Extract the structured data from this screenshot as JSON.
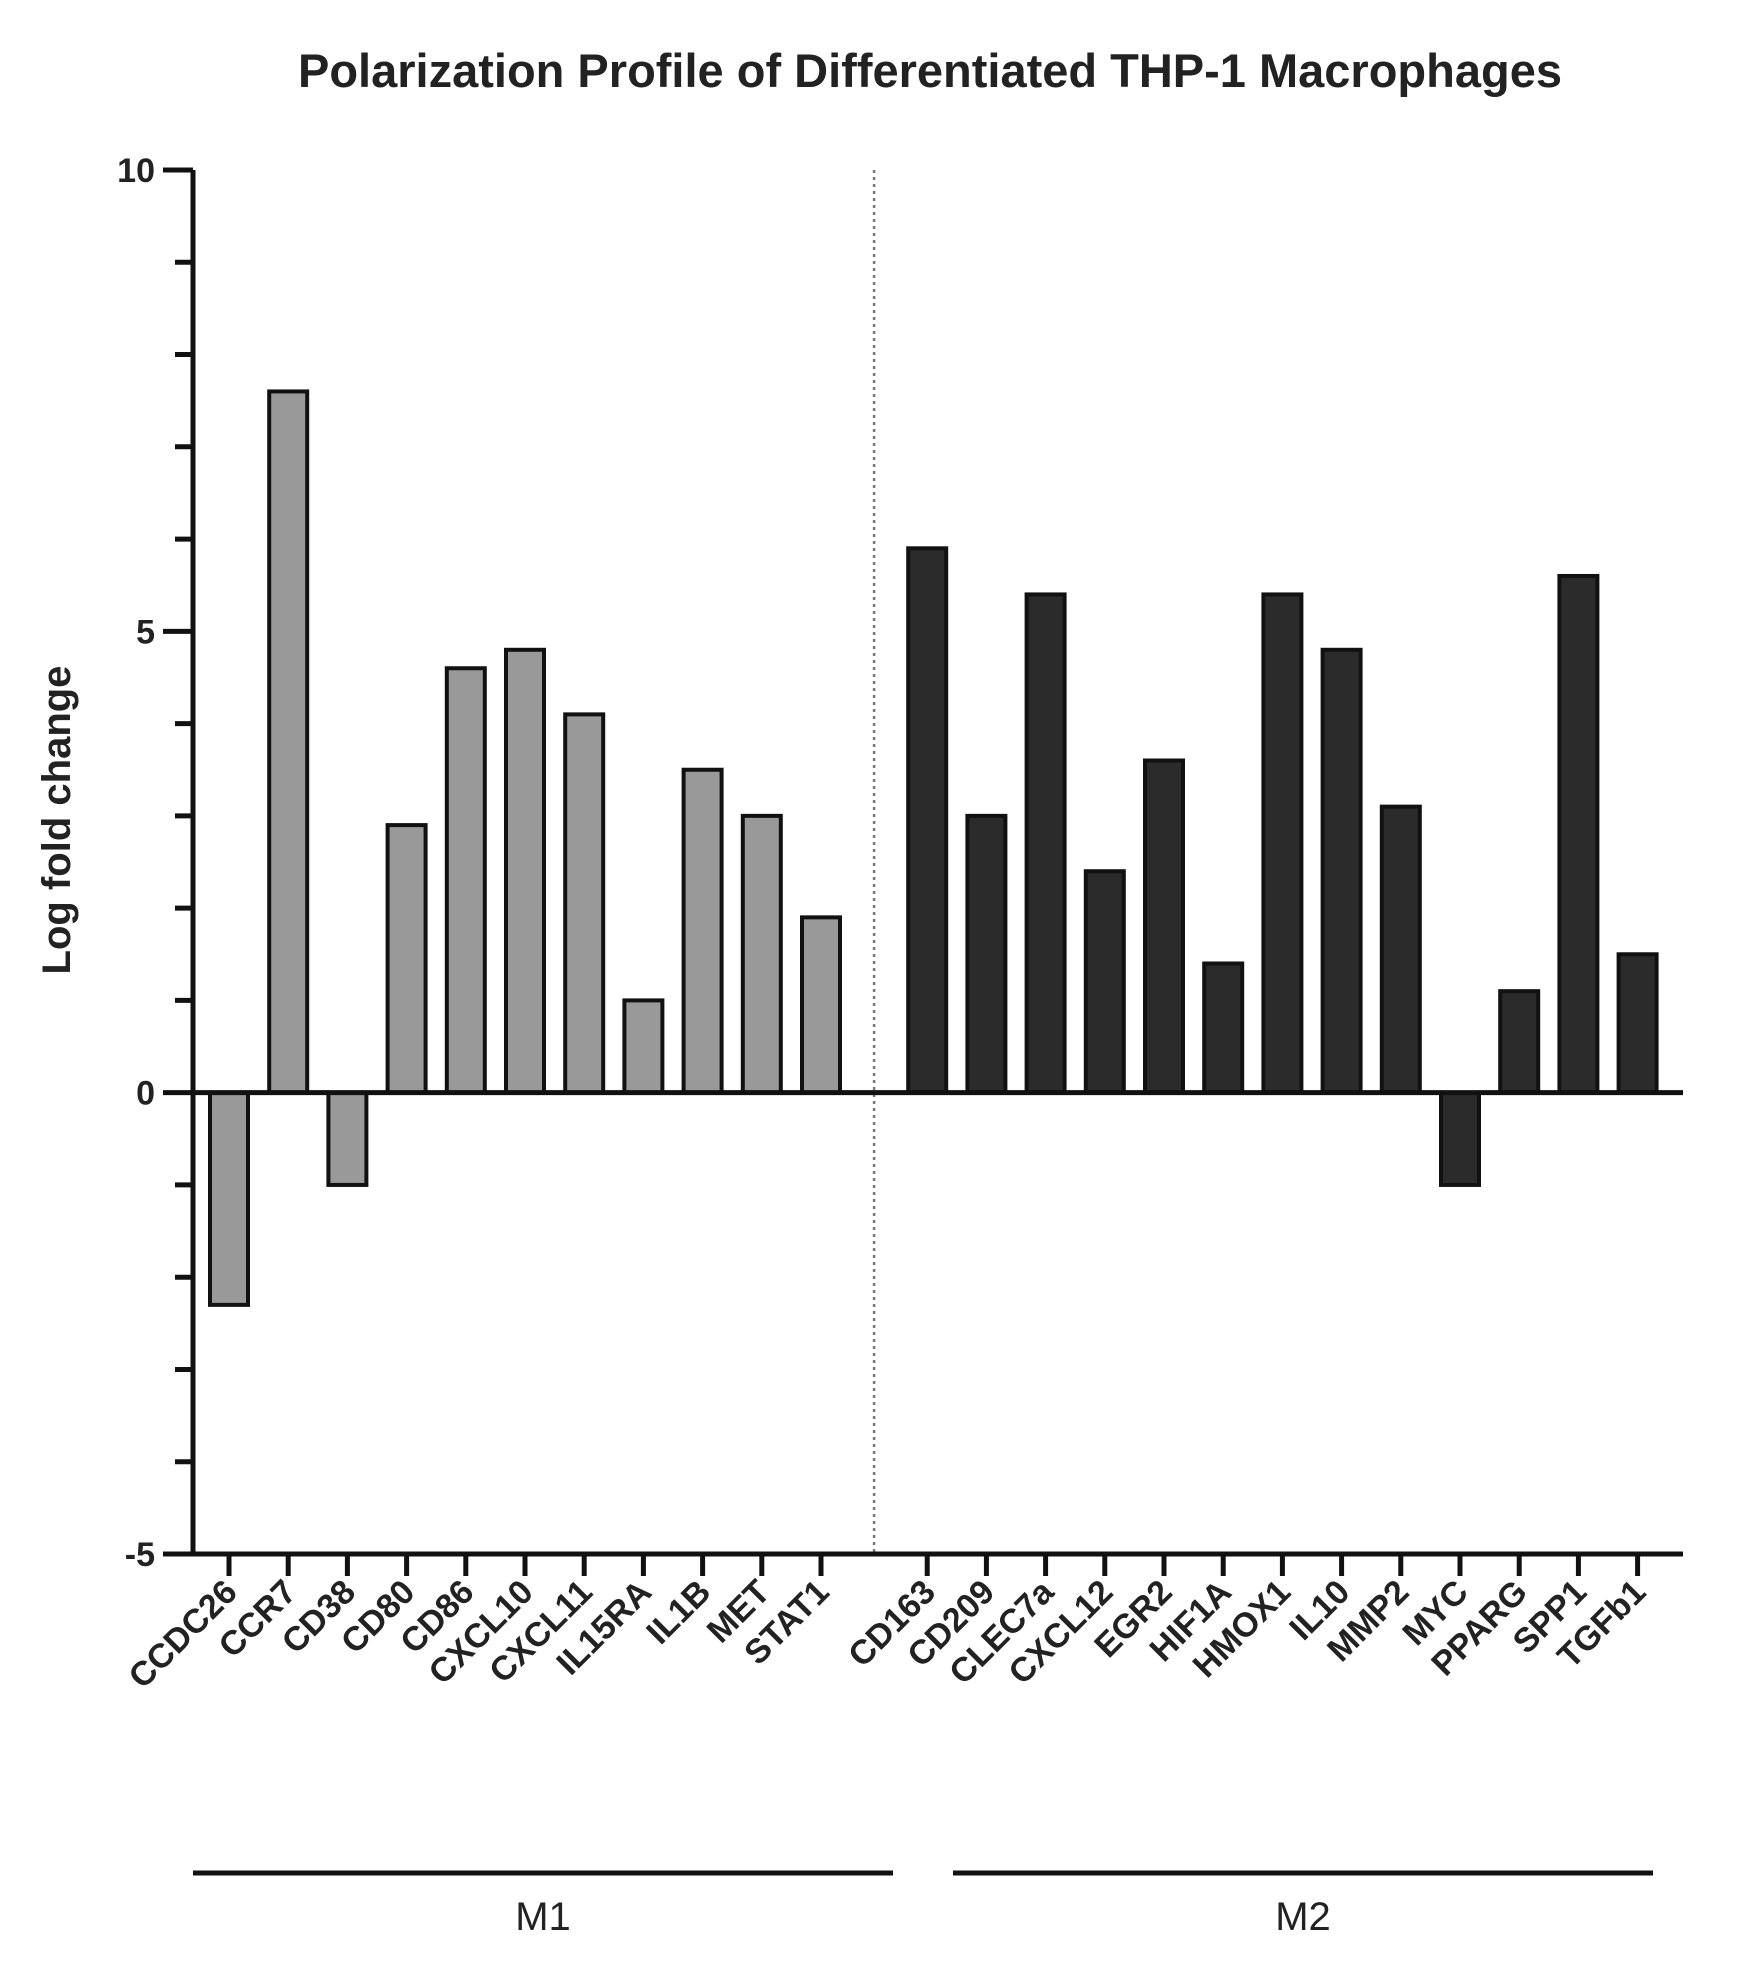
{
  "chart_data": {
    "type": "bar",
    "title": "Polarization Profile of Differentiated THP-1 Macrophages",
    "ylabel": "Log fold change",
    "xlabel": "",
    "ylim": [
      -5,
      10
    ],
    "yticks_labeled": [
      -5,
      0,
      5,
      10
    ],
    "yticks_minor_step": 1,
    "grid": false,
    "legend": "none",
    "categories": [
      "CCDC26",
      "CCR7",
      "CD38",
      "CD80",
      "CD86",
      "CXCL10",
      "CXCL11",
      "IL15RA",
      "IL1B",
      "MET",
      "STAT1",
      "CD163",
      "CD209",
      "CLEC7a",
      "CXCL12",
      "EGR2",
      "HIF1A",
      "HMOX1",
      "IL10",
      "MMP2",
      "MYC",
      "PPARG",
      "SPP1",
      "TGFb1"
    ],
    "series": [
      {
        "values": [
          -2.3,
          7.6,
          -1.0,
          2.9,
          4.6,
          4.8,
          4.1,
          1.0,
          3.5,
          3.0,
          1.9,
          null,
          null,
          null,
          null,
          null,
          null,
          null,
          null,
          null,
          null,
          null,
          null,
          null
        ],
        "color": "#999999"
      },
      {
        "values": [
          null,
          null,
          null,
          null,
          null,
          null,
          null,
          null,
          null,
          null,
          null,
          5.9,
          3.0,
          5.4,
          2.4,
          3.6,
          1.4,
          5.4,
          4.8,
          3.1,
          -1.0,
          1.1,
          5.6,
          1.5
        ],
        "color": "#2b2b2b"
      }
    ],
    "groups": [
      {
        "name": "M1",
        "start": 0,
        "end": 10
      },
      {
        "name": "M2",
        "start": 11,
        "end": 23
      }
    ],
    "divider": "dotted line between STAT1 and CD163"
  }
}
